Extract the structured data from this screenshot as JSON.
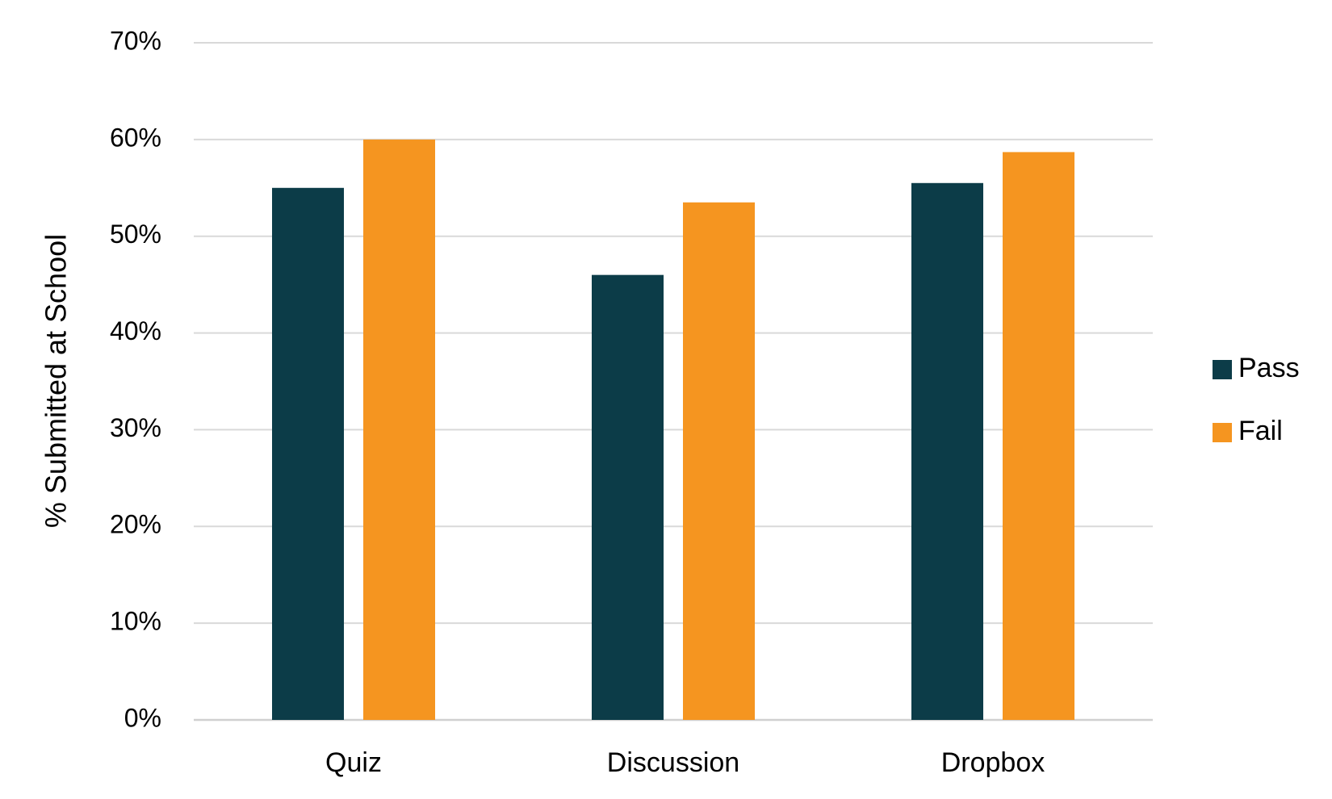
{
  "chart_data": {
    "type": "bar",
    "categories": [
      "Quiz",
      "Discussion",
      "Dropbox"
    ],
    "series": [
      {
        "name": "Pass",
        "values": [
          55,
          46,
          55.5
        ],
        "color": "#0c3c48"
      },
      {
        "name": "Fail",
        "values": [
          60,
          53.5,
          58.7
        ],
        "color": "#f59520"
      }
    ],
    "title": "",
    "xlabel": "",
    "ylabel": "% Submitted at School",
    "ylim": [
      0,
      70
    ],
    "yticks": [
      "0%",
      "10%",
      "20%",
      "30%",
      "40%",
      "50%",
      "60%",
      "70%"
    ],
    "grid": true,
    "legend_position": "right"
  }
}
